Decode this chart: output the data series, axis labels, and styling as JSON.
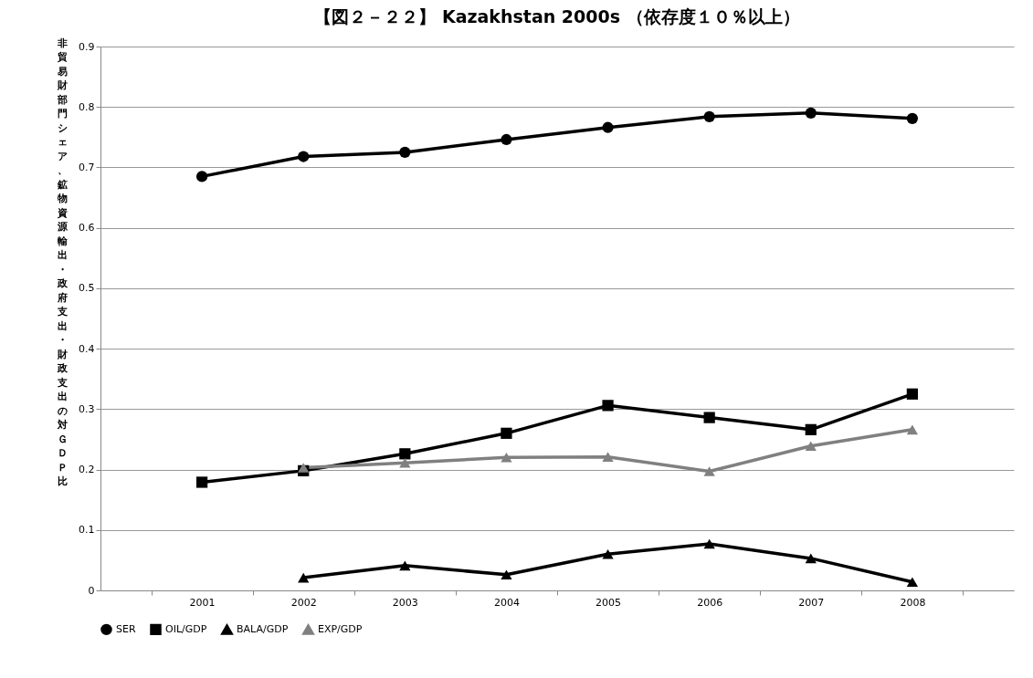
{
  "chart_data": {
    "type": "line",
    "title": "【図２－２２】 Kazakhstan 2000s （依存度１０％以上）",
    "ylabel": "非貿易財部門シェア、鉱物資源輸出・政府支出・財政支出の対ＧＤＰ比",
    "categories": [
      "2001",
      "2002",
      "2003",
      "2004",
      "2005",
      "2006",
      "2007",
      "2008"
    ],
    "series": [
      {
        "name": "SER",
        "color": "#000000",
        "marker": "circle",
        "values": [
          0.685,
          0.718,
          0.725,
          0.746,
          0.766,
          0.784,
          0.79,
          0.781
        ]
      },
      {
        "name": "OIL/GDP",
        "color": "#000000",
        "marker": "square",
        "values": [
          0.179,
          0.198,
          0.226,
          0.26,
          0.306,
          0.286,
          0.266,
          0.325
        ]
      },
      {
        "name": "BALA/GDP",
        "color": "#000000",
        "marker": "triangle",
        "values": [
          null,
          0.021,
          0.041,
          0.026,
          0.06,
          0.077,
          0.053,
          0.014
        ]
      },
      {
        "name": "EXP/GDP",
        "color": "#808080",
        "marker": "triangle",
        "values": [
          null,
          0.203,
          0.211,
          0.22,
          0.221,
          0.197,
          0.239,
          0.266
        ]
      }
    ],
    "ylim": [
      0,
      0.9
    ],
    "yticks": [
      0,
      0.1,
      0.2,
      0.3,
      0.4,
      0.5,
      0.6,
      0.7,
      0.8,
      0.9
    ],
    "grid": "y",
    "legend": "bottom"
  }
}
